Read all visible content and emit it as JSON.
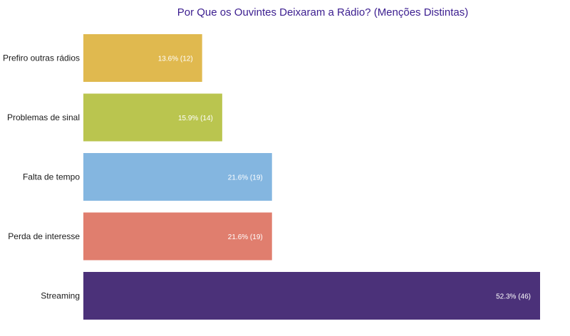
{
  "chart_data": {
    "type": "bar",
    "orientation": "horizontal",
    "title": "Por Que os Ouvintes Deixaram a Rádio? (Menções Distintas)",
    "xlabel": "",
    "ylabel": "",
    "grid": false,
    "xlim": [
      0,
      52.3
    ],
    "categories": [
      "Prefiro outras rádios",
      "Problemas de sinal",
      "Falta de tempo",
      "Perda de interesse",
      "Streaming"
    ],
    "values": [
      13.6,
      15.9,
      21.6,
      21.6,
      52.3
    ],
    "counts": [
      12,
      14,
      19,
      19,
      46
    ],
    "data_labels": [
      "13.6% (12)",
      "15.9% (14)",
      "21.6% (19)",
      "21.6% (19)",
      "52.3% (46)"
    ],
    "colors": [
      "#e0b94f",
      "#bac54f",
      "#84b6e0",
      "#e07e6e",
      "#4b3179"
    ],
    "title_color": "#3b1d8f"
  }
}
